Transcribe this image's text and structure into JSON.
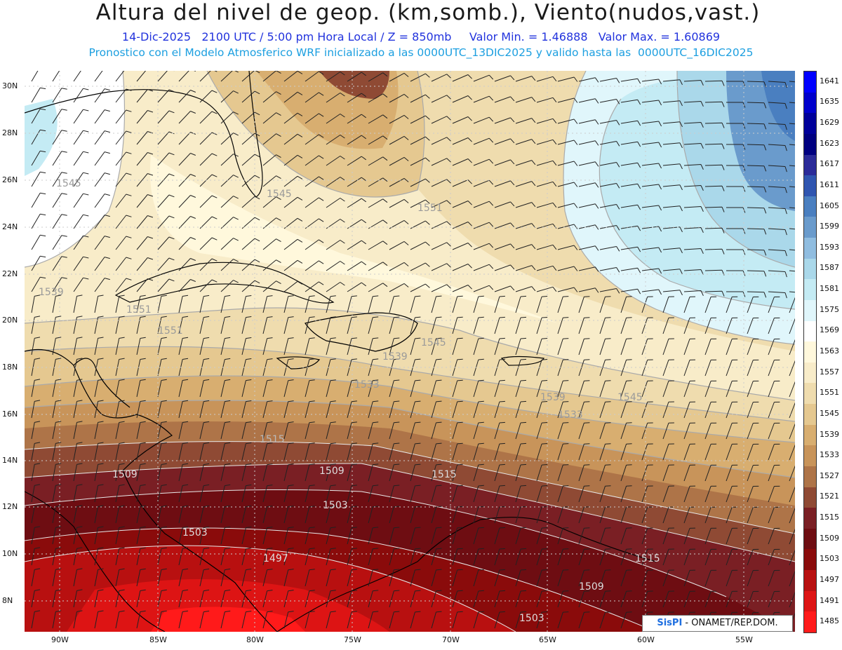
{
  "header": {
    "title": "Altura del nivel de geop. (km,somb.), Viento(nudos,vast.)",
    "info_line": "14-Dic-2025   2100 UTC / 5:00 pm Hora Local / Z = 850mb     Valor Min. = 1.46888   Valor Max. = 1.60869",
    "model_line": "Pronostico con el Modelo Atmosferico WRF inicializado a las 0000UTC_13DIC2025 y valido hasta las  0000UTC_16DIC2025"
  },
  "axes": {
    "lat_labels": [
      "30N",
      "28N",
      "26N",
      "24N",
      "22N",
      "20N",
      "18N",
      "16N",
      "14N",
      "12N",
      "10N",
      "8N"
    ],
    "lon_labels": [
      "90W",
      "85W",
      "80W",
      "75W",
      "70W",
      "65W",
      "60W",
      "55W"
    ]
  },
  "contour_labels": [
    "1545",
    "1551",
    "1551",
    "1551",
    "1545",
    "1539",
    "1539",
    "1533",
    "1545",
    "1545",
    "1539",
    "1533",
    "1515",
    "1509",
    "1509",
    "1503",
    "1503",
    "1497",
    "1515",
    "1509",
    "1503",
    "1515"
  ],
  "legend": {
    "levels": [
      "1641",
      "1635",
      "1629",
      "1623",
      "1617",
      "1611",
      "1605",
      "1599",
      "1593",
      "1587",
      "1581",
      "1575",
      "1569",
      "1563",
      "1557",
      "1551",
      "1545",
      "1539",
      "1533",
      "1527",
      "1521",
      "1515",
      "1509",
      "1503",
      "1497",
      "1491",
      "1485"
    ],
    "colors": [
      "#0000ff",
      "#0000cc",
      "#00009a",
      "#000080",
      "#2b2b99",
      "#2f55b0",
      "#4a7fc0",
      "#6a9bcc",
      "#90bde0",
      "#aad8ea",
      "#c4ebf4",
      "#e0f6fb",
      "#ffffff",
      "#fff8dc",
      "#f8ecc9",
      "#efdcae",
      "#e5c890",
      "#d8ae70",
      "#c8945a",
      "#ae7448",
      "#8f4a34",
      "#7a1f24",
      "#6e0d12",
      "#8a0b0b",
      "#b81010",
      "#dd1414",
      "#ff1a1a"
    ]
  },
  "credit": {
    "brand": "SisPI",
    "text": "- ONAMET/REP.DOM."
  }
}
